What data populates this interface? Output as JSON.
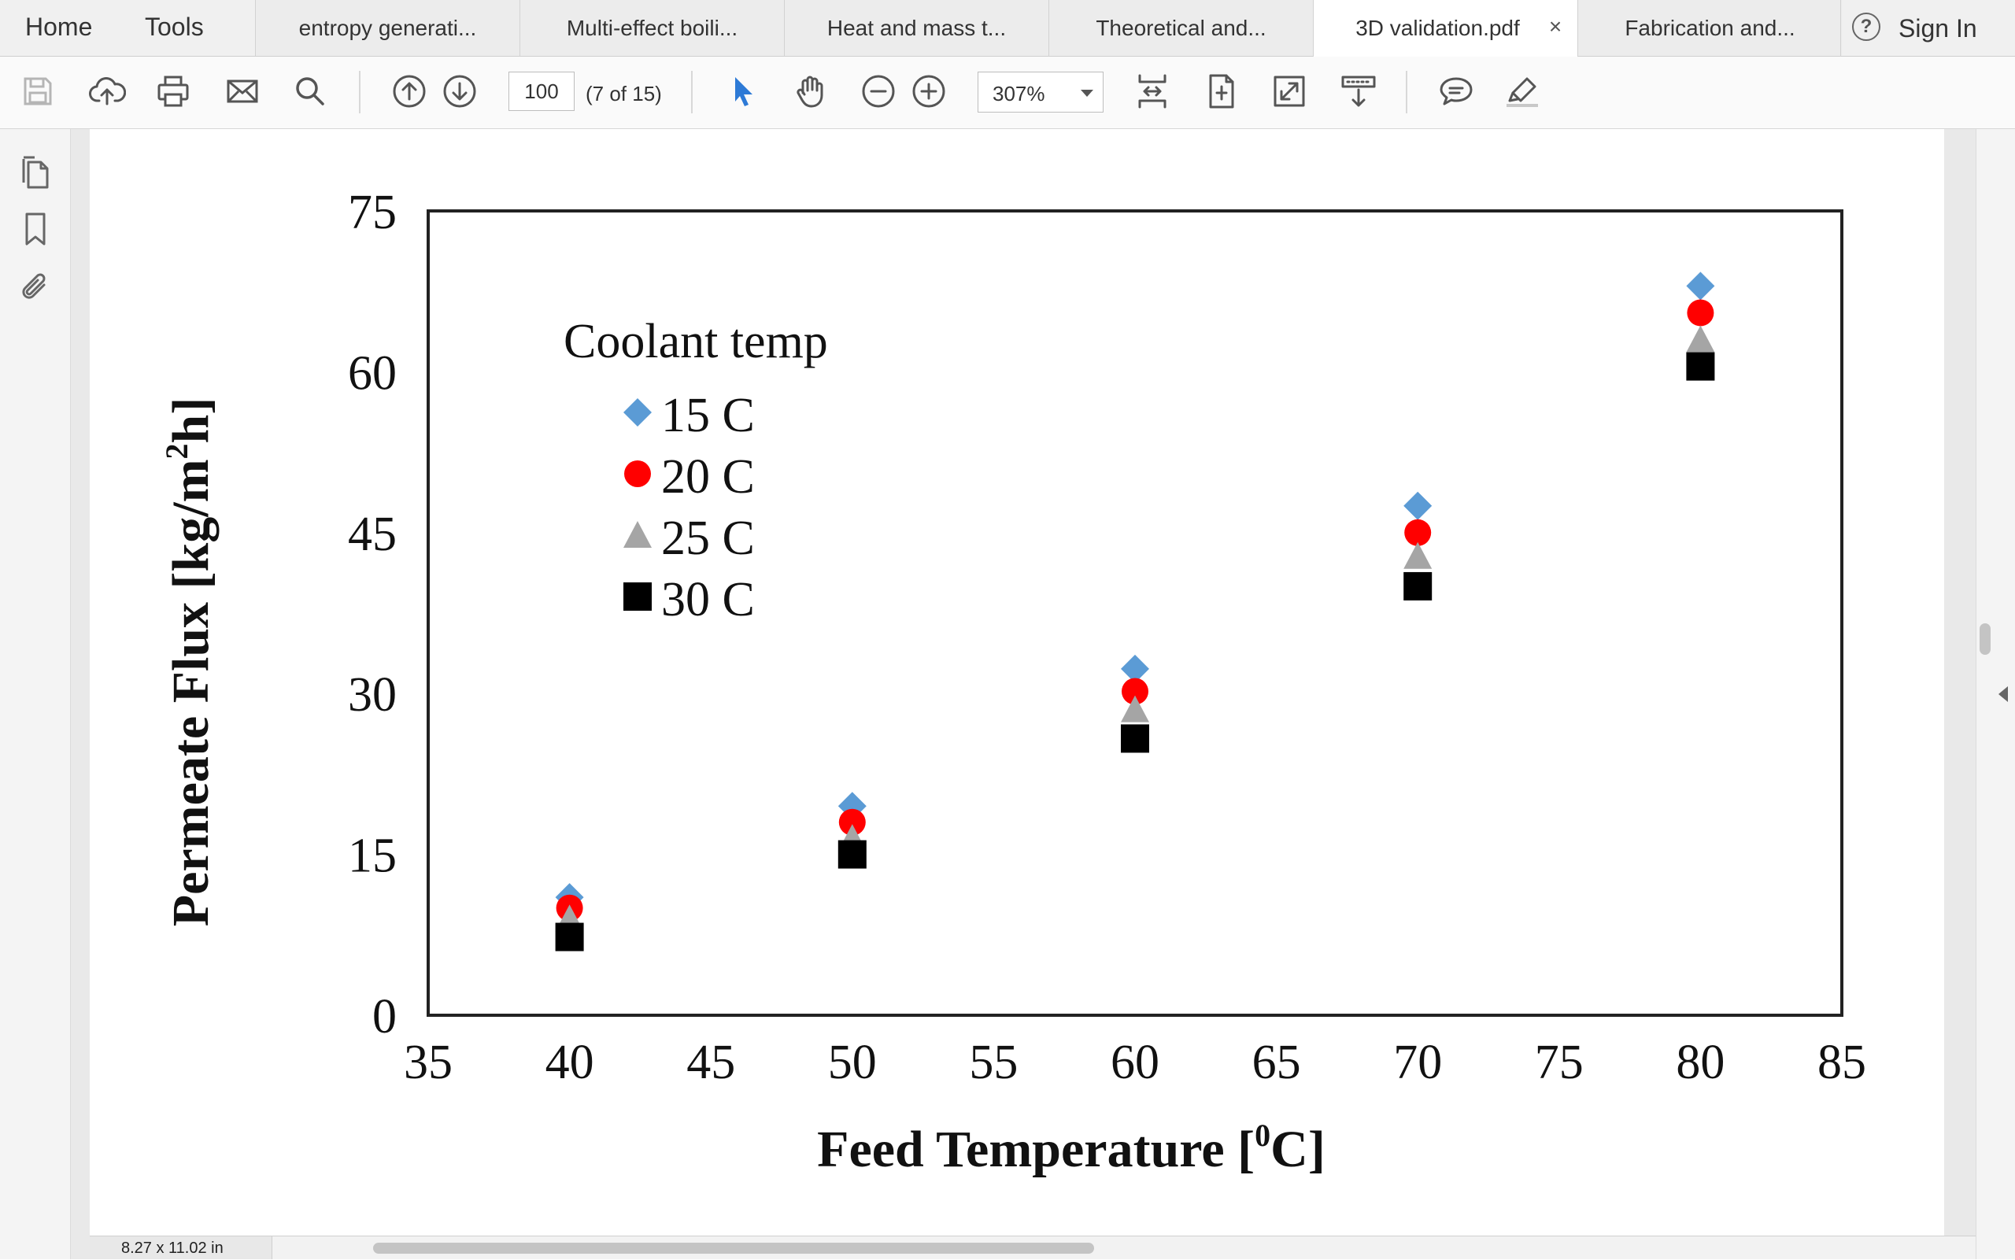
{
  "nav": {
    "home": "Home",
    "tools": "Tools",
    "sign_in": "Sign In",
    "help": "?"
  },
  "tabs": [
    {
      "label": "entropy generati...",
      "active": false
    },
    {
      "label": "Multi-effect boili...",
      "active": false
    },
    {
      "label": "Heat and mass t...",
      "active": false
    },
    {
      "label": "Theoretical and...",
      "active": false
    },
    {
      "label": "3D validation.pdf",
      "active": true,
      "close": "×"
    },
    {
      "label": "Fabrication and...",
      "active": false
    }
  ],
  "toolbar": {
    "page_number": "100",
    "page_count": "(7 of 15)",
    "zoom": "307%",
    "icons": [
      "save-icon",
      "cloud-upload-icon",
      "print-icon",
      "email-icon",
      "search-icon",
      "page-up-icon",
      "page-down-icon",
      "select-arrow-icon",
      "hand-icon",
      "zoom-out-icon",
      "zoom-in-icon",
      "fit-width-icon",
      "fit-page-icon",
      "full-screen-icon",
      "read-mode-icon",
      "comment-icon",
      "highlight-pen-icon"
    ]
  },
  "left_rail": {
    "icons": [
      "pages-icon",
      "bookmark-icon",
      "attachment-icon"
    ]
  },
  "status": {
    "page_size": "8.27 x 11.02 in"
  },
  "colors": {
    "series_15": "#5b9bd5",
    "series_20": "#ff0000",
    "series_25": "#a5a5a5",
    "series_30": "#000000",
    "tab_bar": "#f0f0f0",
    "select_tool": "#2d7ad6"
  },
  "chart_data": {
    "type": "scatter",
    "xlabel": "Feed Temperature [0C]",
    "ylabel": "Permeate Flux [kg/m2h]",
    "xlim": [
      35,
      85
    ],
    "ylim": [
      0,
      75
    ],
    "xticks": [
      35,
      40,
      45,
      50,
      55,
      60,
      65,
      70,
      75,
      80,
      85
    ],
    "yticks": [
      0,
      15,
      30,
      45,
      60,
      75
    ],
    "grid": false,
    "legend": {
      "title": "Coolant temp",
      "position": "top-left"
    },
    "x": [
      40,
      50,
      60,
      70,
      80
    ],
    "series": [
      {
        "name": "15 C",
        "marker": "diamond",
        "color": "#5b9bd5",
        "values": [
          11,
          19.5,
          32.3,
          47.5,
          68
        ]
      },
      {
        "name": "20 C",
        "marker": "circle",
        "color": "#ff0000",
        "values": [
          10,
          18,
          30.2,
          45,
          65.5
        ]
      },
      {
        "name": "25 C",
        "marker": "triangle",
        "color": "#a5a5a5",
        "values": [
          9,
          16.5,
          28.5,
          42.8,
          63
        ]
      },
      {
        "name": "30 C",
        "marker": "square",
        "color": "#000000",
        "values": [
          7.3,
          15,
          25.8,
          40,
          60.5
        ]
      }
    ]
  }
}
